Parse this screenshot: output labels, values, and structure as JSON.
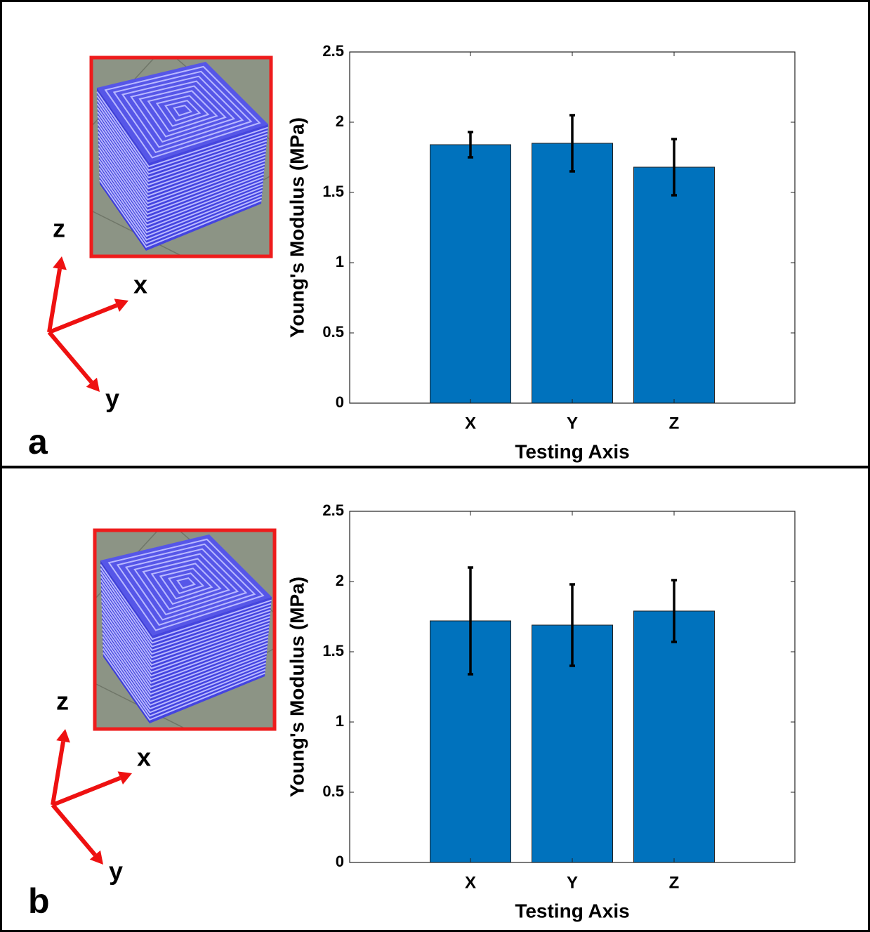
{
  "chart_data": [
    {
      "type": "bar",
      "panel_label": "a",
      "axis_letters": [
        "z",
        "x",
        "y"
      ],
      "xlabel": "Testing Axis",
      "ylabel": "Young's Modulus (MPa)",
      "categories": [
        "X",
        "Y",
        "Z"
      ],
      "values": [
        1.84,
        1.85,
        1.68
      ],
      "errors": [
        0.09,
        0.2,
        0.2
      ],
      "color": "#0072bd",
      "ylim": [
        0,
        2.5
      ],
      "yticks": [
        0,
        0.5,
        1,
        1.5,
        2,
        2.5
      ]
    },
    {
      "type": "bar",
      "panel_label": "b",
      "axis_letters": [
        "z",
        "x",
        "y"
      ],
      "xlabel": "Testing Axis",
      "ylabel": "Young's Modulus (MPa)",
      "categories": [
        "X",
        "Y",
        "Z"
      ],
      "values": [
        1.72,
        1.69,
        1.79
      ],
      "errors": [
        0.38,
        0.29,
        0.22
      ],
      "color": "#0072bd",
      "ylim": [
        0,
        2.5
      ],
      "yticks": [
        0,
        0.5,
        1,
        1.5,
        2,
        2.5
      ]
    }
  ]
}
